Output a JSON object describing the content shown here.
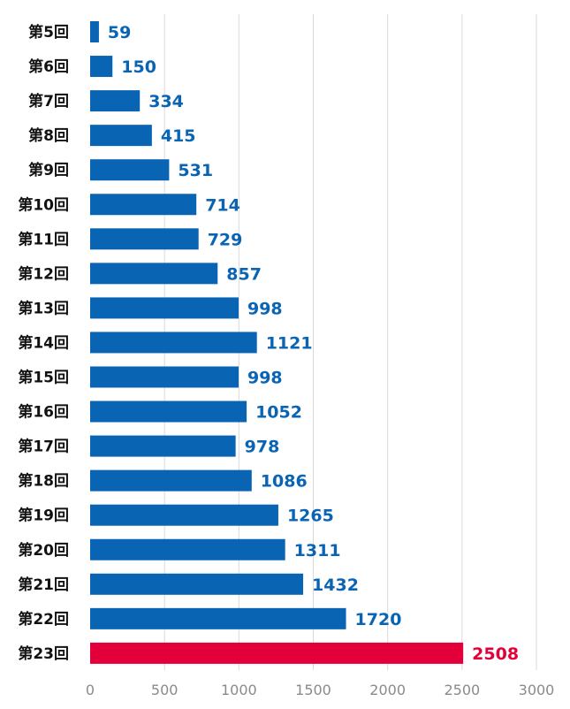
{
  "chart_data": {
    "type": "bar",
    "orientation": "horizontal",
    "categories": [
      "第5回",
      "第6回",
      "第7回",
      "第8回",
      "第9回",
      "第10回",
      "第11回",
      "第12回",
      "第13回",
      "第14回",
      "第15回",
      "第16回",
      "第17回",
      "第18回",
      "第19回",
      "第20回",
      "第21回",
      "第22回",
      "第23回"
    ],
    "values": [
      59,
      150,
      334,
      415,
      531,
      714,
      729,
      857,
      998,
      1121,
      998,
      1052,
      978,
      1086,
      1265,
      1311,
      1432,
      1720,
      2508
    ],
    "xlim": [
      0,
      3000
    ],
    "xticks": [
      0,
      500,
      1000,
      1500,
      2000,
      2500,
      3000
    ],
    "grid": true,
    "legend": "none",
    "colors": {
      "bar": "#0a64b4",
      "highlight_bar": "#e3003a",
      "value_label": "#0a64b4",
      "highlight_value_label": "#e3003a",
      "category_label": "#111111",
      "tick_label": "#8a8a8a",
      "grid": "#d9d9d9"
    },
    "highlight_category": "第23回"
  }
}
